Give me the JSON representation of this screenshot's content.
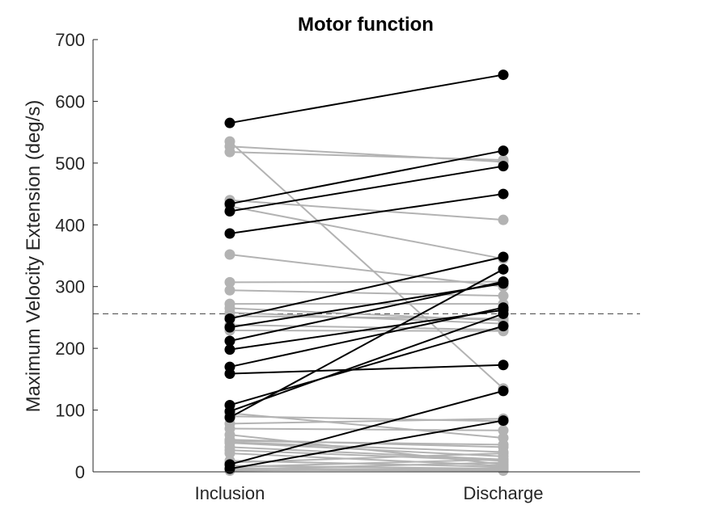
{
  "chart_data": {
    "type": "line",
    "title": "Motor function",
    "xlabel": "",
    "ylabel": "Maximum Velocity Extension (deg/s)",
    "categories": [
      "Inclusion",
      "Discharge"
    ],
    "ylim": [
      0,
      700
    ],
    "yticks": [
      0,
      100,
      200,
      300,
      400,
      500,
      600,
      700
    ],
    "grid": false,
    "reference_line": {
      "y": 256,
      "style": "dashed"
    },
    "colors": {
      "improved": "#000000",
      "other": "#b3b3b3",
      "axis": "#262626",
      "reference": "#404040"
    },
    "series_improved": [
      [
        565,
        643
      ],
      [
        434,
        520
      ],
      [
        422,
        495
      ],
      [
        386,
        450
      ],
      [
        248,
        348
      ],
      [
        234,
        305
      ],
      [
        212,
        308
      ],
      [
        198,
        262
      ],
      [
        170,
        266
      ],
      [
        159,
        173
      ],
      [
        108,
        236
      ],
      [
        98,
        256
      ],
      [
        88,
        328
      ],
      [
        12,
        131
      ],
      [
        5,
        83
      ]
    ],
    "series_other": [
      [
        535,
        135
      ],
      [
        527,
        502
      ],
      [
        518,
        505
      ],
      [
        440,
        408
      ],
      [
        430,
        345
      ],
      [
        352,
        300
      ],
      [
        307,
        308
      ],
      [
        294,
        285
      ],
      [
        272,
        272
      ],
      [
        265,
        245
      ],
      [
        258,
        240
      ],
      [
        252,
        248
      ],
      [
        238,
        230
      ],
      [
        229,
        228
      ],
      [
        95,
        55
      ],
      [
        90,
        82
      ],
      [
        78,
        86
      ],
      [
        70,
        67
      ],
      [
        60,
        12
      ],
      [
        52,
        40
      ],
      [
        50,
        44
      ],
      [
        48,
        32
      ],
      [
        47,
        25
      ],
      [
        40,
        20
      ],
      [
        35,
        18
      ],
      [
        30,
        10
      ],
      [
        18,
        8
      ],
      [
        15,
        30
      ],
      [
        10,
        5
      ],
      [
        8,
        20
      ],
      [
        6,
        3
      ],
      [
        4,
        15
      ],
      [
        3,
        2
      ],
      [
        2,
        6
      ]
    ]
  }
}
